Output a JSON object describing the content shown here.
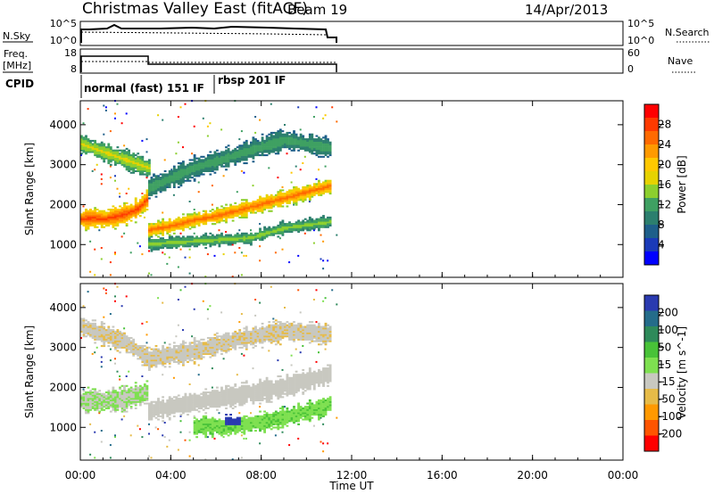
{
  "header": {
    "title": "Christmas Valley East (fitACF)",
    "beam": "Beam 19",
    "date": "14/Apr/2013"
  },
  "status_panels": {
    "nsky": {
      "label": "N.Sky",
      "ticks": [
        "10^5",
        "10^0"
      ],
      "right_ticks": [
        "10^5",
        "10^0"
      ],
      "right_label": "N.Search"
    },
    "freq": {
      "label_top": "Freq.",
      "label_unit": "[MHz]",
      "ticks": [
        "18",
        "8"
      ],
      "right_ticks": [
        "60",
        "0"
      ],
      "right_label": "Nave"
    },
    "cpid": {
      "label": "CPID",
      "segments": [
        "normal (fast) 151 IF",
        "rbsp 201 IF"
      ]
    }
  },
  "colorbar_power": {
    "label": "Power [dB]",
    "ticks": [
      "28",
      "24",
      "20",
      "16",
      "12",
      "8",
      "4"
    ],
    "colors": [
      "#ff0000",
      "#ff3a00",
      "#ff6a00",
      "#ff9a00",
      "#ffc800",
      "#e6d200",
      "#8ccf2e",
      "#3fa062",
      "#2c7f6e",
      "#1e5f8a",
      "#1a3ab8",
      "#0000ff"
    ]
  },
  "colorbar_velocity": {
    "label": "Velocity [m s^-1]",
    "ticks": [
      "200",
      "100",
      "50",
      "15",
      "-15",
      "-50",
      "-100",
      "-200"
    ],
    "colors": [
      "#2a3ab0",
      "#246c8a",
      "#2e8a5a",
      "#48c238",
      "#7ee050",
      "#c8c8c0",
      "#e6bb48",
      "#ff9900",
      "#ff5500",
      "#ff0000"
    ]
  },
  "chart_data": {
    "type": "heatmap",
    "xlabel": "Time UT",
    "x_ticks": [
      "00:00",
      "04:00",
      "08:00",
      "12:00",
      "16:00",
      "20:00",
      "00:00"
    ],
    "x_range_hours": [
      0,
      24
    ],
    "data_end_hours": 11.3,
    "panels": [
      {
        "name": "power",
        "ylabel": "Slant Range [km]",
        "y_ticks": [
          4000,
          3000,
          2000,
          1000
        ],
        "ylim": [
          180,
          4600
        ],
        "clim": [
          0,
          30
        ],
        "bands": [
          {
            "t": [
              0,
              0.5,
              1.0,
              1.5,
              2.0,
              2.5,
              2.9
            ],
            "center": [
              1620,
              1650,
              1620,
              1680,
              1750,
              1880,
              2100
            ],
            "width": 260,
            "value": 26
          },
          {
            "t": [
              3.0,
              4.0,
              5.0,
              6.0,
              7.0,
              8.0,
              9.0,
              10.0,
              11.0
            ],
            "center": [
              1350,
              1450,
              1600,
              1700,
              1850,
              2000,
              2150,
              2300,
              2450
            ],
            "width": 200,
            "value": 24
          },
          {
            "t": [
              3.0,
              4.5,
              6.0,
              7.5,
              9.0,
              11.0
            ],
            "center": [
              1000,
              1050,
              1100,
              1150,
              1400,
              1550
            ],
            "width": 160,
            "value": 14
          },
          {
            "t": [
              0,
              1.0,
              2.0,
              3.0
            ],
            "center": [
              3500,
              3300,
              3100,
              2900
            ],
            "width": 240,
            "value": 16
          },
          {
            "t": [
              3.0,
              5.0,
              7.0,
              9.0,
              11.0
            ],
            "center": [
              2400,
              2900,
              3250,
              3600,
              3400
            ],
            "width": 260,
            "value": 12
          }
        ]
      },
      {
        "name": "velocity",
        "ylabel": "Slant Range [km]",
        "y_ticks": [
          4000,
          3000,
          2000,
          1000
        ],
        "ylim": [
          180,
          4600
        ],
        "clim": [
          -250,
          250
        ],
        "bands": [
          {
            "t": [
              0,
              1.0,
              2.0,
              2.9
            ],
            "center": [
              1650,
              1650,
              1700,
              1850
            ],
            "width": 300,
            "value": 0
          },
          {
            "t": [
              3.0,
              5.0,
              7.0,
              9.0,
              11.0
            ],
            "center": [
              1400,
              1600,
              1800,
              2000,
              2300
            ],
            "width": 260,
            "value": -20
          },
          {
            "t": [
              5.0,
              6.5,
              8.0,
              9.5,
              11.0
            ],
            "center": [
              1000,
              1000,
              1100,
              1300,
              1550
            ],
            "width": 240,
            "value": 40
          },
          {
            "t": [
              6.4,
              7.0
            ],
            "center": [
              1050,
              1050
            ],
            "width": 240,
            "value": 220
          },
          {
            "t": [
              0,
              1.0,
              2.0,
              3.0,
              5.0,
              7.0,
              9.0,
              11.0
            ],
            "center": [
              3500,
              3300,
              3100,
              2700,
              2900,
              3200,
              3400,
              3300
            ],
            "width": 260,
            "value": -40
          }
        ]
      }
    ]
  }
}
